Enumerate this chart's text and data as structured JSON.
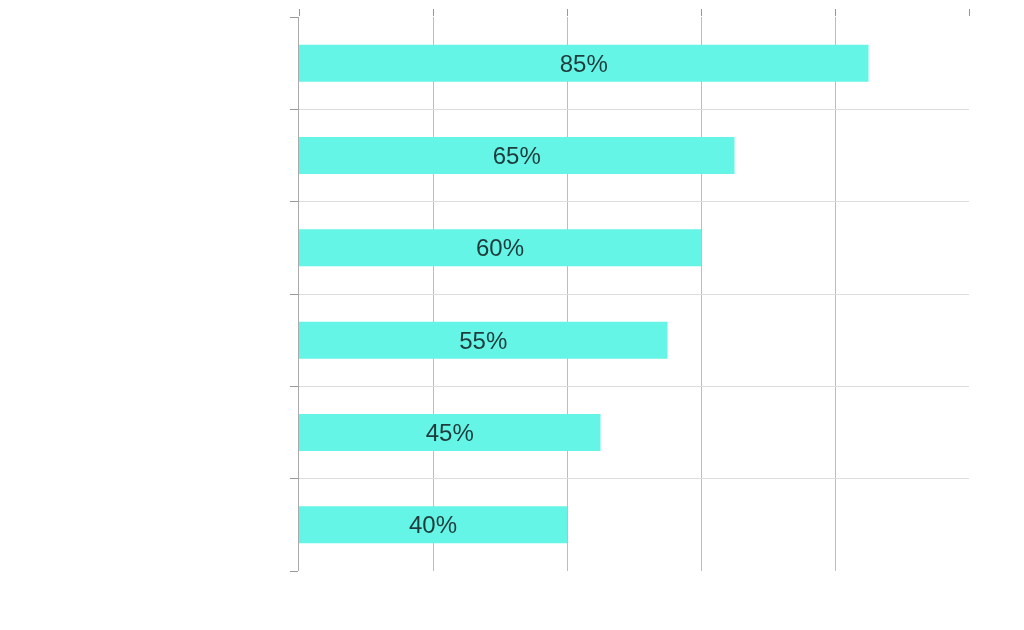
{
  "chart_data": {
    "type": "bar",
    "orientation": "horizontal",
    "categories": [
      null,
      null,
      null,
      null,
      null,
      null
    ],
    "values": [
      85,
      65,
      60,
      55,
      45,
      40
    ],
    "value_labels": [
      "85%",
      "65%",
      "60%",
      "55%",
      "45%",
      "40%"
    ],
    "color": "#64f5e6",
    "xlim": [
      0,
      100
    ],
    "xticks": [
      {
        "value": 0,
        "label": null
      },
      {
        "value": 20,
        "label": null
      },
      {
        "value": 40,
        "label": null
      },
      {
        "value": 60,
        "label": null
      },
      {
        "value": 80,
        "label": null
      },
      {
        "value": 100,
        "label": null
      }
    ],
    "grid": true
  }
}
